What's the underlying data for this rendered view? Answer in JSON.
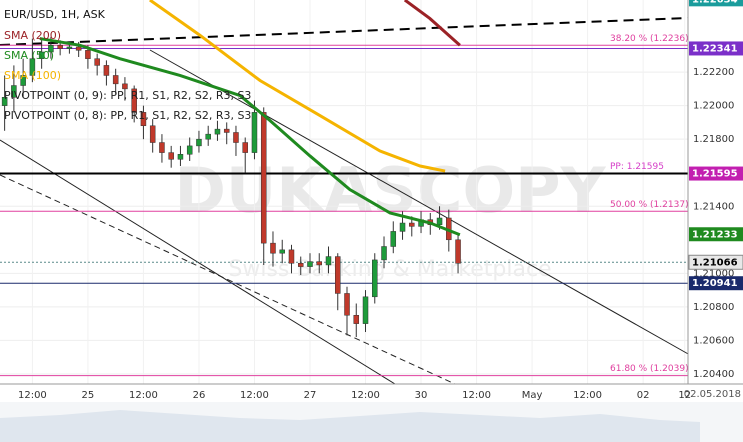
{
  "chart_data": {
    "type": "candlestick",
    "title": "EUR/USD, 1H, ASK",
    "legend": [
      {
        "name": "SMA (200)",
        "color": "#9b2226"
      },
      {
        "name": "SMA (50)",
        "color": "#1f8a1f"
      },
      {
        "name": "SMA (100)",
        "color": "#f5b400"
      }
    ],
    "pivot_labels": [
      "PIVOTPOINT (0, 9): PP, R1, S1, R2, S2, R3, S3",
      "PIVOTPOINT (0, 8): PP, R1, S1, R2, S2, R3, S3"
    ],
    "watermark": "DUKASCOPY",
    "watermark_sub": "Swiss Banking & Marketplace",
    "navigator_date": "02.05.2018",
    "xlim": [
      5,
      153.7
    ],
    "ylim": [
      1.2034,
      1.2263
    ],
    "xticks": [
      {
        "value": 12,
        "label": "12:00"
      },
      {
        "value": 24,
        "label": "25"
      },
      {
        "value": 36,
        "label": "12:00"
      },
      {
        "value": 48,
        "label": "26"
      },
      {
        "value": 60,
        "label": "12:00"
      },
      {
        "value": 72,
        "label": "27"
      },
      {
        "value": 84,
        "label": "12:00"
      },
      {
        "value": 96,
        "label": "30"
      },
      {
        "value": 108,
        "label": "12:00"
      },
      {
        "value": 120,
        "label": "May"
      },
      {
        "value": 132,
        "label": "12:00"
      },
      {
        "value": 144,
        "label": "02"
      },
      {
        "value": 153,
        "label": "12"
      }
    ],
    "yticks": [
      {
        "value": 1.204,
        "label": "1.20400"
      },
      {
        "value": 1.206,
        "label": "1.20600"
      },
      {
        "value": 1.208,
        "label": "1.20800"
      },
      {
        "value": 1.21,
        "label": "1.21000"
      },
      {
        "value": 1.214,
        "label": "1.21400"
      },
      {
        "value": 1.218,
        "label": "1.21800"
      },
      {
        "value": 1.22,
        "label": "1.22000"
      },
      {
        "value": 1.222,
        "label": "1.22200"
      }
    ],
    "up_color": "#1e9b3a",
    "down_color": "#c0392b",
    "candles": {
      "x": [
        6,
        8,
        10,
        12,
        14,
        16,
        18,
        20,
        22,
        24,
        26,
        28,
        30,
        32,
        34,
        36,
        38,
        40,
        42,
        44,
        46,
        48,
        50,
        52,
        54,
        56,
        58,
        60,
        62,
        64,
        66,
        68,
        70,
        72,
        74,
        76,
        78,
        80,
        82,
        84,
        86,
        88,
        90,
        92,
        94,
        96,
        98,
        100,
        102,
        104
      ],
      "open": [
        1.22,
        1.2205,
        1.2212,
        1.2218,
        1.2228,
        1.2232,
        1.2236,
        1.2234,
        1.2235,
        1.2233,
        1.2228,
        1.2224,
        1.2218,
        1.2213,
        1.221,
        1.2196,
        1.2188,
        1.2178,
        1.2172,
        1.2168,
        1.2171,
        1.2176,
        1.218,
        1.2183,
        1.2186,
        1.2184,
        1.2178,
        1.2172,
        1.2196,
        1.2118,
        1.2112,
        1.2114,
        1.2106,
        1.2104,
        1.2107,
        1.2105,
        1.211,
        1.2088,
        1.2075,
        1.207,
        1.2086,
        1.2108,
        1.2116,
        1.2125,
        1.213,
        1.2128,
        1.2132,
        1.2129,
        1.2133,
        1.212
      ],
      "high": [
        1.2218,
        1.2224,
        1.2228,
        1.224,
        1.224,
        1.2241,
        1.2239,
        1.2238,
        1.2238,
        1.2236,
        1.2231,
        1.2227,
        1.2222,
        1.2217,
        1.2212,
        1.22,
        1.2192,
        1.2183,
        1.2176,
        1.2176,
        1.2181,
        1.2185,
        1.2188,
        1.2191,
        1.219,
        1.2188,
        1.2181,
        1.2203,
        1.2199,
        1.2125,
        1.212,
        1.2117,
        1.211,
        1.2112,
        1.2112,
        1.2116,
        1.2112,
        1.2092,
        1.2082,
        1.209,
        1.2112,
        1.2122,
        1.2131,
        1.2137,
        1.2134,
        1.2137,
        1.2136,
        1.214,
        1.2138,
        1.2124
      ],
      "low": [
        1.2185,
        1.2196,
        1.2205,
        1.2214,
        1.2222,
        1.2228,
        1.223,
        1.2231,
        1.2229,
        1.2222,
        1.2218,
        1.2212,
        1.2207,
        1.2203,
        1.219,
        1.218,
        1.2172,
        1.2166,
        1.2163,
        1.2164,
        1.2167,
        1.2172,
        1.2176,
        1.2179,
        1.2177,
        1.217,
        1.216,
        1.2168,
        1.2105,
        1.2104,
        1.2106,
        1.21,
        1.2099,
        1.21,
        1.21,
        1.21,
        1.2078,
        1.2063,
        1.2062,
        1.2065,
        1.2082,
        1.2103,
        1.2112,
        1.212,
        1.2122,
        1.2124,
        1.2123,
        1.2126,
        1.2113,
        1.21
      ],
      "close": [
        1.2205,
        1.2212,
        1.2218,
        1.2228,
        1.2232,
        1.2236,
        1.2234,
        1.2235,
        1.2233,
        1.2228,
        1.2224,
        1.2218,
        1.2213,
        1.221,
        1.2196,
        1.2188,
        1.2178,
        1.2172,
        1.2168,
        1.2171,
        1.2176,
        1.218,
        1.2183,
        1.2186,
        1.2184,
        1.2178,
        1.2172,
        1.2196,
        1.2118,
        1.2112,
        1.2114,
        1.2106,
        1.2104,
        1.2107,
        1.2105,
        1.211,
        1.2088,
        1.2075,
        1.207,
        1.2086,
        1.2108,
        1.2116,
        1.2125,
        1.213,
        1.2128,
        1.2132,
        1.2129,
        1.2133,
        1.212,
        1.2106
      ]
    },
    "series": [
      {
        "name": "SMA (100)",
        "color": "#f5b400",
        "x": [
          37.4,
          48.2,
          61.2,
          74.2,
          87.1,
          95.8,
          101.2
        ],
        "values": [
          1.2263,
          1.2242,
          1.2215,
          1.2194,
          1.2173,
          1.2164,
          1.2161
        ]
      },
      {
        "name": "SMA (200)",
        "color": "#9b2226",
        "x": [
          92.5,
          97.9,
          104.4
        ],
        "values": [
          1.2263,
          1.2252,
          1.2236
        ]
      },
      {
        "name": "SMA (50)",
        "color": "#1f8a1f",
        "x": [
          13.6,
          22.3,
          30.9,
          43.9,
          56.9,
          63.4,
          72,
          80.6,
          89.3,
          98,
          104.4
        ],
        "values": [
          1.224,
          1.2236,
          1.2228,
          1.2218,
          1.2206,
          1.2191,
          1.217,
          1.215,
          1.2136,
          1.213,
          1.2123
        ]
      }
    ],
    "levels": [
      {
        "value": 1.2236,
        "label": "38.20 % (1.2236)",
        "color": "#e0409f"
      },
      {
        "value": 1.21595,
        "label": "PP: 1.21595",
        "color": "#d63fc8"
      },
      {
        "value": 1.2137,
        "label": "50.00 % (1.2137)",
        "color": "#e0409f"
      },
      {
        "value": 1.2039,
        "label": "61.80 % (1.2039)",
        "color": "#e0409f"
      }
    ],
    "price_tags": [
      {
        "value": 1.22634,
        "color": "#1a9c9c",
        "line": "partial"
      },
      {
        "value": 1.22341,
        "color": "#7b2fc9",
        "line": "solid"
      },
      {
        "value": 1.21595,
        "color": "#c21fb0",
        "line": "black"
      },
      {
        "value": 1.21233,
        "color": "#1f8a1f",
        "line": "none"
      },
      {
        "value": 1.21066,
        "color": "#e8e8e8",
        "line": "dotted"
      },
      {
        "value": 1.20941,
        "color": "#1a2a6c",
        "line": "solid"
      }
    ]
  }
}
